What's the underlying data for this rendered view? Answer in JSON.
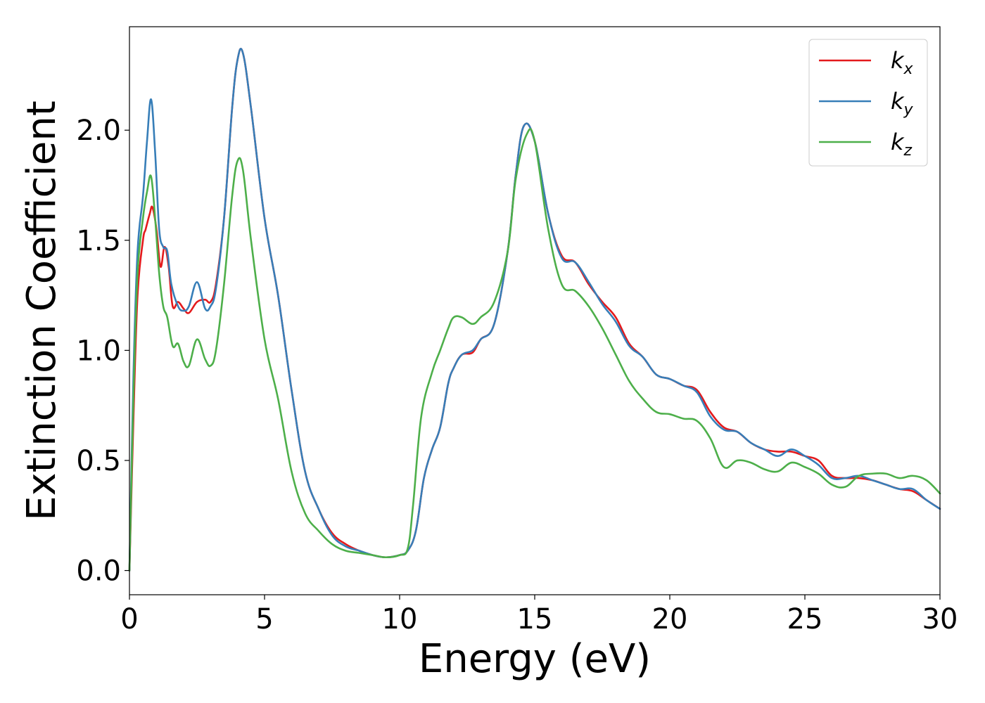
{
  "chart_data": {
    "type": "line",
    "xlabel": "Energy (eV)",
    "ylabel": "Extinction Coefficient",
    "xlim": [
      0,
      30
    ],
    "ylim": [
      -0.11,
      2.47
    ],
    "xticks": [
      0,
      5,
      10,
      15,
      20,
      25,
      30
    ],
    "yticks": [
      0.0,
      0.5,
      1.0,
      1.5,
      2.0
    ],
    "xtick_labels": [
      "0",
      "5",
      "10",
      "15",
      "20",
      "25",
      "30"
    ],
    "ytick_labels": [
      "0.0",
      "0.5",
      "1.0",
      "1.5",
      "2.0"
    ],
    "grid": false,
    "legend_position": "top-right",
    "series": [
      {
        "name": "k",
        "subscript": "x",
        "color": "#e41a1c",
        "x": [
          0,
          0.15,
          0.3,
          0.5,
          0.6,
          0.75,
          0.85,
          1.0,
          1.15,
          1.3,
          1.45,
          1.6,
          1.8,
          2.0,
          2.2,
          2.5,
          2.8,
          3.0,
          3.2,
          3.5,
          3.8,
          4.0,
          4.2,
          4.5,
          5.0,
          5.5,
          6.0,
          6.5,
          7.0,
          7.5,
          8.0,
          8.5,
          9.0,
          9.5,
          10.0,
          10.3,
          10.6,
          10.9,
          11.2,
          11.5,
          11.8,
          12.0,
          12.3,
          12.7,
          13.0,
          13.5,
          14.0,
          14.3,
          14.6,
          15.0,
          15.5,
          16.0,
          16.5,
          17.0,
          17.5,
          18.0,
          18.5,
          19.0,
          19.5,
          20.0,
          20.5,
          21.0,
          21.5,
          22.0,
          22.5,
          23.0,
          23.5,
          24.0,
          24.5,
          25.0,
          25.5,
          26.0,
          26.5,
          27.0,
          27.5,
          28.0,
          28.5,
          29.0,
          29.5,
          30.0
        ],
        "values": [
          0.0,
          0.7,
          1.25,
          1.5,
          1.55,
          1.62,
          1.65,
          1.55,
          1.38,
          1.47,
          1.38,
          1.2,
          1.22,
          1.19,
          1.17,
          1.22,
          1.23,
          1.22,
          1.3,
          1.6,
          2.1,
          2.32,
          2.35,
          2.1,
          1.6,
          1.25,
          0.82,
          0.45,
          0.28,
          0.17,
          0.12,
          0.09,
          0.07,
          0.06,
          0.07,
          0.09,
          0.18,
          0.42,
          0.55,
          0.65,
          0.85,
          0.92,
          0.98,
          0.99,
          1.05,
          1.12,
          1.45,
          1.8,
          2.02,
          1.95,
          1.62,
          1.43,
          1.4,
          1.3,
          1.22,
          1.15,
          1.03,
          0.97,
          0.89,
          0.87,
          0.84,
          0.82,
          0.72,
          0.65,
          0.63,
          0.58,
          0.55,
          0.54,
          0.54,
          0.52,
          0.5,
          0.43,
          0.42,
          0.42,
          0.41,
          0.39,
          0.37,
          0.36,
          0.32,
          0.28
        ]
      },
      {
        "name": "k",
        "subscript": "y",
        "color": "#377eb8",
        "x": [
          0,
          0.15,
          0.3,
          0.5,
          0.65,
          0.8,
          0.95,
          1.1,
          1.25,
          1.4,
          1.55,
          1.8,
          2.0,
          2.2,
          2.5,
          2.8,
          3.0,
          3.2,
          3.5,
          3.8,
          4.0,
          4.2,
          4.5,
          5.0,
          5.5,
          6.0,
          6.5,
          7.0,
          7.5,
          8.0,
          8.5,
          9.0,
          9.5,
          10.0,
          10.3,
          10.6,
          10.9,
          11.2,
          11.5,
          11.8,
          12.0,
          12.3,
          12.7,
          13.0,
          13.5,
          14.0,
          14.3,
          14.6,
          15.0,
          15.5,
          16.0,
          16.5,
          17.0,
          17.5,
          18.0,
          18.5,
          19.0,
          19.5,
          20.0,
          20.5,
          21.0,
          21.5,
          22.0,
          22.5,
          23.0,
          23.5,
          24.0,
          24.5,
          25.0,
          25.5,
          26.0,
          26.5,
          27.0,
          27.5,
          28.0,
          28.5,
          29.0,
          29.5,
          30.0
        ],
        "values": [
          0.0,
          0.9,
          1.45,
          1.7,
          1.95,
          2.14,
          1.9,
          1.55,
          1.47,
          1.45,
          1.3,
          1.2,
          1.18,
          1.2,
          1.31,
          1.19,
          1.2,
          1.28,
          1.6,
          2.1,
          2.32,
          2.35,
          2.1,
          1.6,
          1.25,
          0.82,
          0.45,
          0.28,
          0.16,
          0.11,
          0.09,
          0.07,
          0.06,
          0.07,
          0.09,
          0.18,
          0.42,
          0.55,
          0.65,
          0.85,
          0.92,
          0.98,
          1.0,
          1.05,
          1.12,
          1.45,
          1.8,
          2.02,
          1.95,
          1.62,
          1.42,
          1.4,
          1.31,
          1.21,
          1.13,
          1.02,
          0.97,
          0.89,
          0.87,
          0.84,
          0.81,
          0.7,
          0.64,
          0.63,
          0.58,
          0.55,
          0.52,
          0.55,
          0.52,
          0.48,
          0.42,
          0.42,
          0.43,
          0.41,
          0.39,
          0.37,
          0.37,
          0.32,
          0.28
        ]
      },
      {
        "name": "k",
        "subscript": "z",
        "color": "#4daf4a",
        "x": [
          0,
          0.15,
          0.3,
          0.5,
          0.65,
          0.8,
          0.95,
          1.1,
          1.25,
          1.4,
          1.6,
          1.8,
          2.0,
          2.2,
          2.5,
          2.8,
          3.0,
          3.2,
          3.5,
          3.8,
          4.0,
          4.2,
          4.5,
          5.0,
          5.5,
          6.0,
          6.5,
          7.0,
          7.5,
          8.0,
          8.5,
          9.0,
          9.5,
          10.0,
          10.3,
          10.5,
          10.8,
          11.2,
          11.5,
          11.8,
          12.0,
          12.3,
          12.7,
          13.0,
          13.5,
          14.0,
          14.3,
          14.7,
          15.0,
          15.5,
          16.0,
          16.5,
          17.0,
          17.5,
          18.0,
          18.5,
          19.0,
          19.5,
          20.0,
          20.5,
          21.0,
          21.5,
          22.0,
          22.5,
          23.0,
          23.5,
          24.0,
          24.5,
          25.0,
          25.5,
          26.0,
          26.5,
          27.0,
          27.5,
          28.0,
          28.5,
          29.0,
          29.5,
          30.0
        ],
        "values": [
          0.0,
          0.8,
          1.35,
          1.6,
          1.72,
          1.79,
          1.6,
          1.35,
          1.2,
          1.15,
          1.02,
          1.03,
          0.95,
          0.93,
          1.05,
          0.96,
          0.93,
          1.0,
          1.3,
          1.7,
          1.86,
          1.82,
          1.5,
          1.05,
          0.78,
          0.45,
          0.26,
          0.18,
          0.12,
          0.09,
          0.08,
          0.07,
          0.06,
          0.07,
          0.1,
          0.3,
          0.7,
          0.9,
          1.0,
          1.1,
          1.15,
          1.15,
          1.12,
          1.15,
          1.22,
          1.45,
          1.78,
          1.98,
          1.95,
          1.55,
          1.3,
          1.27,
          1.2,
          1.1,
          0.98,
          0.86,
          0.78,
          0.72,
          0.71,
          0.69,
          0.68,
          0.6,
          0.47,
          0.5,
          0.49,
          0.46,
          0.45,
          0.49,
          0.47,
          0.44,
          0.39,
          0.38,
          0.43,
          0.44,
          0.44,
          0.42,
          0.43,
          0.41,
          0.35
        ]
      }
    ]
  }
}
